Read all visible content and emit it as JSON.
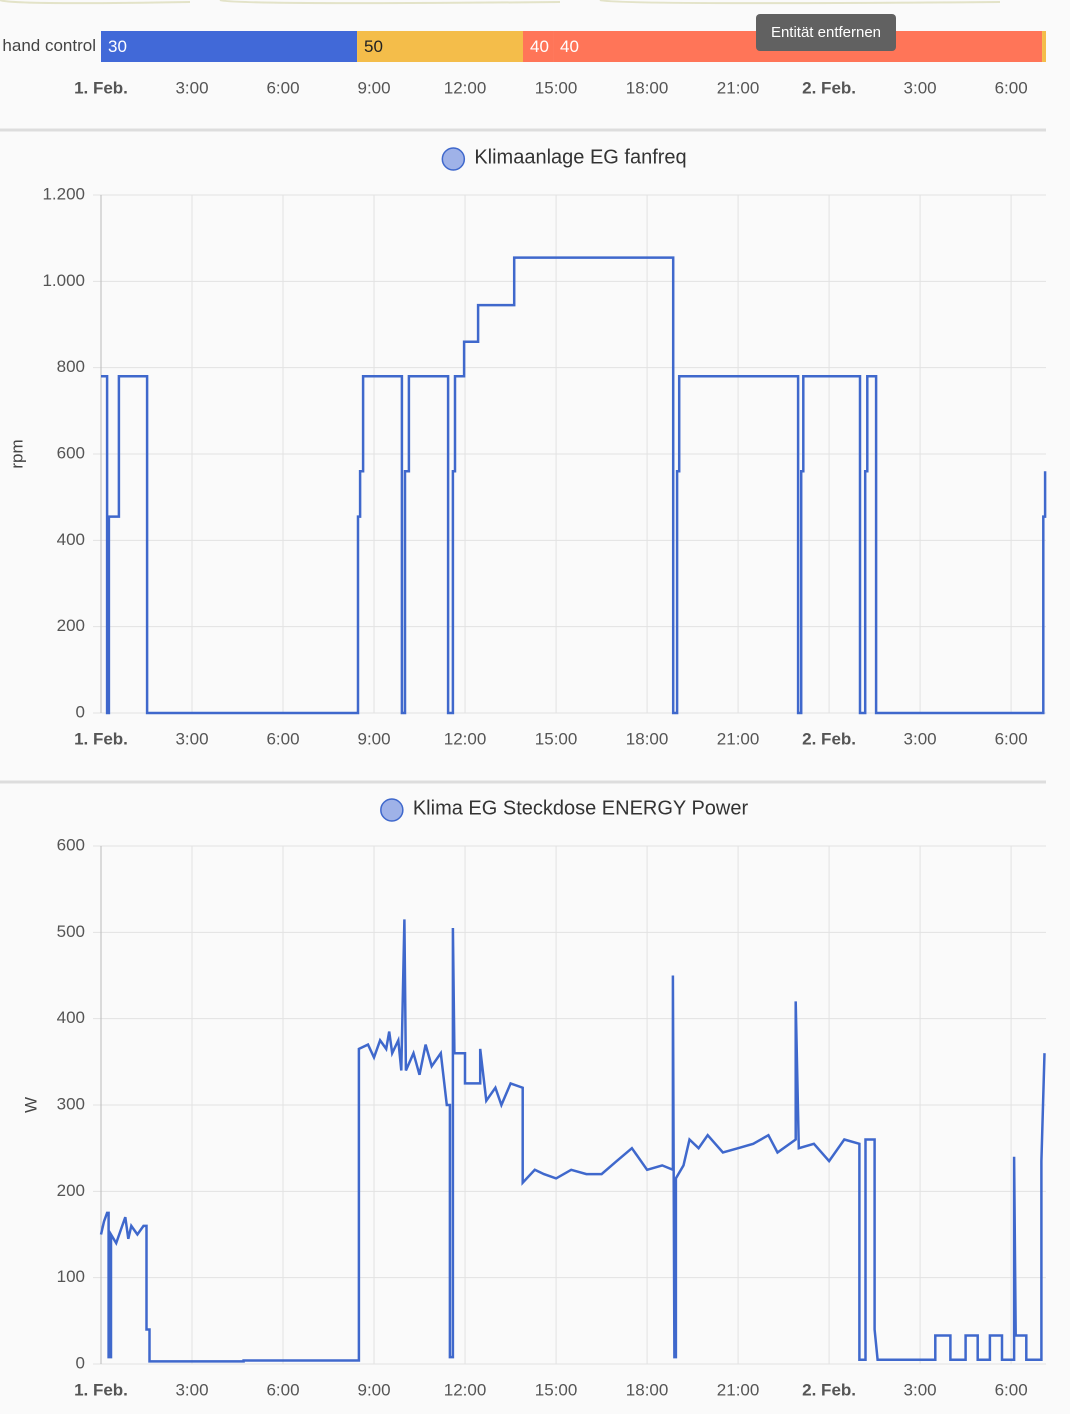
{
  "tooltip": "Entität entfernen",
  "chart_data": [
    {
      "type": "timeline",
      "label": "hand control",
      "xlim": [
        0,
        31.15
      ],
      "xticks": [
        {
          "value": 0,
          "label": "1. Feb."
        },
        {
          "value": 3,
          "label": "3:00"
        },
        {
          "value": 6,
          "label": "6:00"
        },
        {
          "value": 9,
          "label": "9:00"
        },
        {
          "value": 12,
          "label": "12:00"
        },
        {
          "value": 15,
          "label": "15:00"
        },
        {
          "value": 18,
          "label": "18:00"
        },
        {
          "value": 21,
          "label": "21:00"
        },
        {
          "value": 24,
          "label": "2. Feb."
        },
        {
          "value": 27,
          "label": "3:00"
        },
        {
          "value": 30,
          "label": "6:00"
        }
      ],
      "segments": [
        {
          "state": 30,
          "start": 0,
          "end": 8.44,
          "color": "#4169d8"
        },
        {
          "state": 50,
          "start": 8.44,
          "end": 13.91,
          "color": "#f4bd4a"
        },
        {
          "state": 40,
          "start": 13.91,
          "end": 14.9,
          "color": "#ff7558"
        },
        {
          "state": 40,
          "start": 14.9,
          "end": 31.02,
          "color": "#ff7558"
        },
        {
          "state": null,
          "start": 31.02,
          "end": 31.15,
          "color": "#f4bd4a"
        }
      ]
    },
    {
      "type": "line",
      "y_label": "rpm",
      "grid": true,
      "xlim": [
        0,
        31.15
      ],
      "xticks": [
        {
          "value": 0,
          "label": "1. Feb."
        },
        {
          "value": 3,
          "label": "3:00"
        },
        {
          "value": 6,
          "label": "6:00"
        },
        {
          "value": 9,
          "label": "9:00"
        },
        {
          "value": 12,
          "label": "12:00"
        },
        {
          "value": 15,
          "label": "15:00"
        },
        {
          "value": 18,
          "label": "18:00"
        },
        {
          "value": 21,
          "label": "21:00"
        },
        {
          "value": 24,
          "label": "2. Feb."
        },
        {
          "value": 27,
          "label": "3:00"
        },
        {
          "value": 30,
          "label": "6:00"
        }
      ],
      "ylim": [
        0,
        1200
      ],
      "yticks": [
        0,
        200,
        400,
        600,
        800,
        {
          "value": 1000,
          "label": "1.000"
        },
        {
          "value": 1200,
          "label": "1.200"
        }
      ],
      "x": [
        0,
        0.2,
        0.2,
        0.26,
        0.26,
        0.59,
        0.59,
        1.52,
        1.52,
        8.47,
        8.47,
        8.54,
        8.54,
        8.64,
        8.64,
        9.92,
        9.92,
        10.02,
        10.02,
        10.15,
        10.15,
        11.44,
        11.44,
        11.6,
        11.6,
        11.67,
        11.67,
        11.97,
        11.97,
        12.43,
        12.43,
        13.62,
        13.62,
        18.86,
        18.86,
        18.99,
        18.99,
        19.06,
        19.06,
        22.98,
        22.98,
        23.08,
        23.08,
        23.15,
        23.15,
        25.02,
        25.02,
        25.19,
        25.19,
        25.26,
        25.26,
        25.55,
        25.55,
        31.06,
        31.06,
        31.12,
        31.12
      ],
      "series": [
        {
          "name": "Klimaanlage EG fanfreq",
          "color": "#3f68cc",
          "legend_color": "#9fb2e8",
          "values": [
            780,
            780,
            0,
            0,
            455,
            455,
            780,
            780,
            0,
            0,
            455,
            455,
            560,
            560,
            780,
            780,
            0,
            0,
            560,
            560,
            780,
            780,
            0,
            0,
            560,
            560,
            780,
            780,
            860,
            860,
            945,
            945,
            1055,
            1055,
            0,
            0,
            560,
            560,
            780,
            780,
            0,
            0,
            560,
            560,
            780,
            780,
            0,
            0,
            560,
            560,
            780,
            780,
            0,
            0,
            455,
            455,
            560
          ]
        }
      ]
    },
    {
      "type": "line",
      "y_label": "W",
      "grid": true,
      "xlim": [
        0,
        31.15
      ],
      "xticks": [
        {
          "value": 0,
          "label": "1. Feb."
        },
        {
          "value": 3,
          "label": "3:00"
        },
        {
          "value": 6,
          "label": "6:00"
        },
        {
          "value": 9,
          "label": "9:00"
        },
        {
          "value": 12,
          "label": "12:00"
        },
        {
          "value": 15,
          "label": "15:00"
        },
        {
          "value": 18,
          "label": "18:00"
        },
        {
          "value": 21,
          "label": "21:00"
        },
        {
          "value": 24,
          "label": "2. Feb."
        },
        {
          "value": 27,
          "label": "3:00"
        },
        {
          "value": 30,
          "label": "6:00"
        }
      ],
      "ylim": [
        0,
        600
      ],
      "yticks": [
        0,
        100,
        200,
        300,
        400,
        500,
        600
      ],
      "x": [
        0,
        0.1,
        0.2,
        0.25,
        0.25,
        0.33,
        0.33,
        0.5,
        0.7,
        0.8,
        0.9,
        1.0,
        1.2,
        1.4,
        1.5,
        1.5,
        1.6,
        1.6,
        4.7,
        4.7,
        8.5,
        8.5,
        8.8,
        9.0,
        9.2,
        9.4,
        9.5,
        9.6,
        9.8,
        9.9,
        10.0,
        10.05,
        10.3,
        10.5,
        10.7,
        10.9,
        11.2,
        11.4,
        11.5,
        11.5,
        11.6,
        11.6,
        11.65,
        12.0,
        12.0,
        12.5,
        12.5,
        12.7,
        13.0,
        13.2,
        13.5,
        13.9,
        13.9,
        14.3,
        14.6,
        15.0,
        15.5,
        16.0,
        16.5,
        17.0,
        17.5,
        18.0,
        18.5,
        18.85,
        18.85,
        18.9,
        18.95,
        18.95,
        19.2,
        19.4,
        19.7,
        20.0,
        20.5,
        21.0,
        21.5,
        22.0,
        22.3,
        22.9,
        22.9,
        23.0,
        23.5,
        24.0,
        24.5,
        25.0,
        25.0,
        25.2,
        25.2,
        25.5,
        25.5,
        25.6,
        27.5,
        27.5,
        28.0,
        28.0,
        28.5,
        28.5,
        28.9,
        28.9,
        29.3,
        29.3,
        29.7,
        29.7,
        30.1,
        30.1,
        30.15,
        30.5,
        30.5,
        31.0,
        31.0,
        31.1
      ],
      "series": [
        {
          "name": "Klima EG Steckdose ENERGY Power",
          "color": "#3f68cc",
          "legend_color": "#9fb2e8",
          "values": [
            150,
            165,
            175,
            175,
            8,
            8,
            150,
            140,
            160,
            170,
            145,
            160,
            150,
            160,
            160,
            40,
            40,
            3,
            3,
            4,
            4,
            365,
            370,
            355,
            375,
            365,
            385,
            360,
            375,
            340,
            515,
            340,
            360,
            335,
            370,
            345,
            360,
            300,
            300,
            8,
            8,
            505,
            360,
            360,
            325,
            325,
            365,
            305,
            320,
            300,
            325,
            320,
            210,
            225,
            220,
            215,
            225,
            220,
            220,
            235,
            250,
            225,
            230,
            225,
            450,
            8,
            8,
            215,
            230,
            260,
            250,
            265,
            245,
            250,
            255,
            265,
            245,
            260,
            420,
            250,
            255,
            235,
            260,
            255,
            5,
            5,
            260,
            260,
            40,
            5,
            5,
            33,
            33,
            5,
            5,
            33,
            33,
            5,
            5,
            33,
            33,
            5,
            5,
            240,
            33,
            33,
            5,
            5,
            235,
            360
          ]
        }
      ]
    }
  ]
}
